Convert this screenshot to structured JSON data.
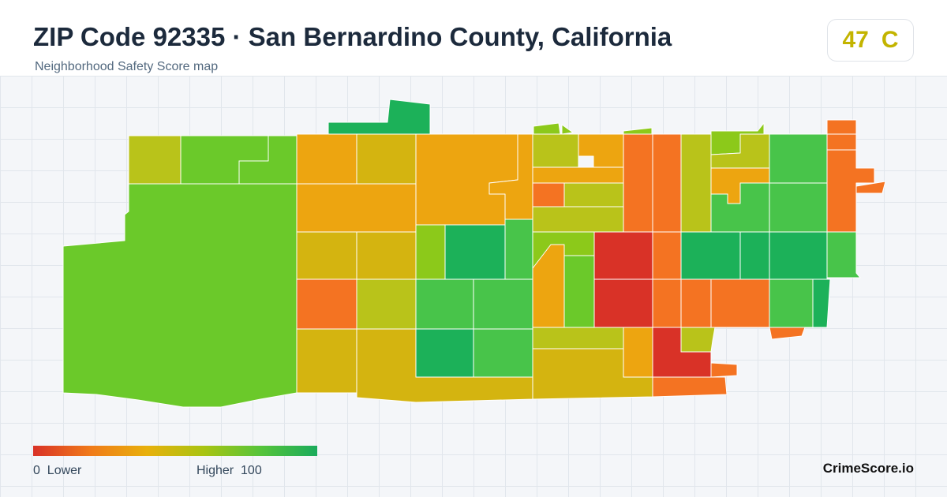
{
  "header": {
    "title": "ZIP Code 92335 · San Bernardino County, California",
    "subtitle": "Neighborhood Safety Score map"
  },
  "score": {
    "value": "47",
    "grade": "C",
    "color": "#c3b400"
  },
  "legend": {
    "min_value": "0",
    "min_label": "Lower",
    "max_label": "Higher",
    "max_value": "100",
    "gradient_colors": [
      "#d93227",
      "#f07a1a",
      "#e8b00c",
      "#a9c412",
      "#56c43a",
      "#1aab5c"
    ]
  },
  "brand": "CrimeScore.io",
  "map": {
    "colors": {
      "low": "#d93227",
      "orange": "#f47322",
      "amber": "#eda510",
      "gold": "#d4b410",
      "olive": "#b9c31a",
      "lime": "#8cc91a",
      "green": "#6bc92a",
      "mid_green": "#48c44a",
      "dark_green": "#1cb159",
      "border": "#ffffff"
    }
  }
}
